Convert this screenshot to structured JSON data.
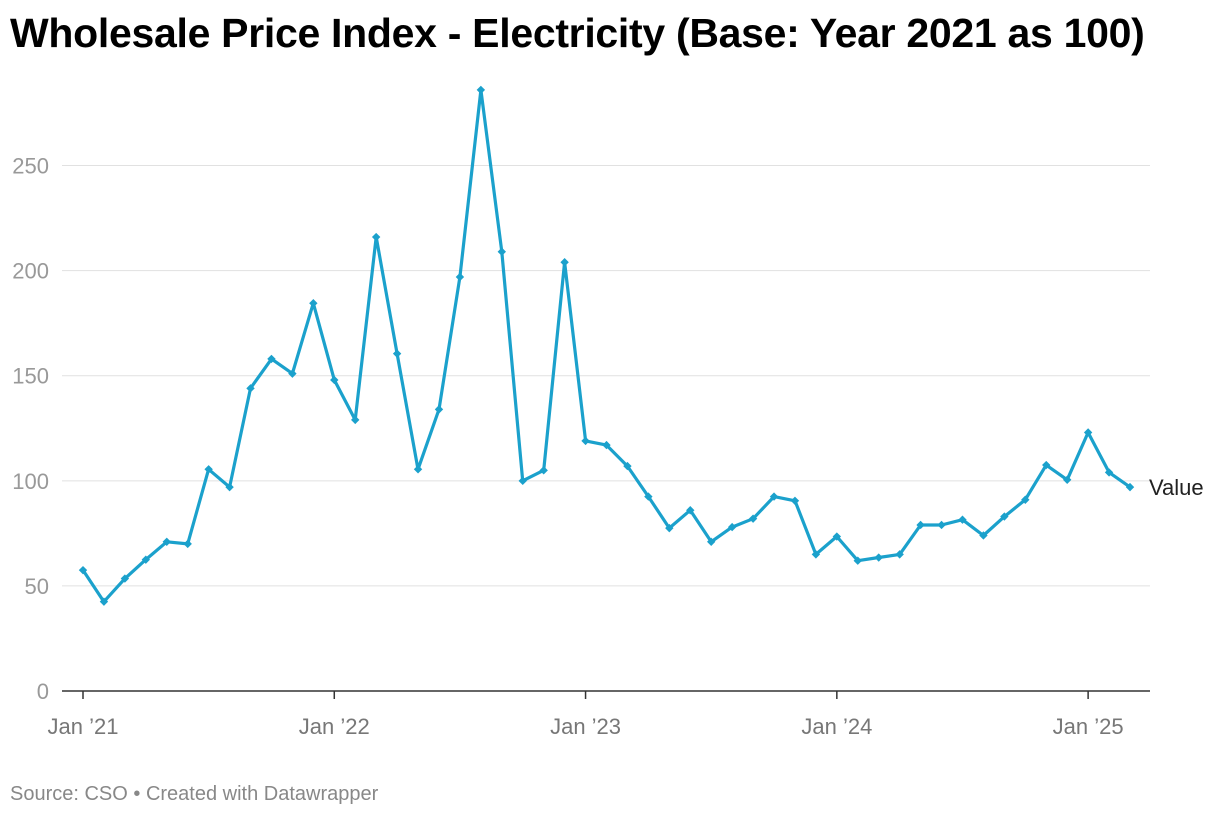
{
  "colors": {
    "line": "#1ba1cc",
    "grid": "#e1e1e1",
    "axis": "#333333"
  },
  "chart_data": {
    "type": "line",
    "title": "Wholesale Price Index - Electricity (Base: Year 2021 as 100)",
    "xlabel": "",
    "ylabel": "",
    "ylim": [
      0,
      285
    ],
    "yticks": [
      0,
      50,
      100,
      150,
      200,
      250
    ],
    "xticks": [
      {
        "label": "Jan ’21",
        "x": "2021-01"
      },
      {
        "label": "Jan ’22",
        "x": "2022-01"
      },
      {
        "label": "Jan ’23",
        "x": "2023-01"
      },
      {
        "label": "Jan ’24",
        "x": "2024-01"
      },
      {
        "label": "Jan ’25",
        "x": "2025-01"
      }
    ],
    "grid": true,
    "series": [
      {
        "name": "Value",
        "x": [
          "2021-01",
          "2021-02",
          "2021-03",
          "2021-04",
          "2021-05",
          "2021-06",
          "2021-07",
          "2021-08",
          "2021-09",
          "2021-10",
          "2021-11",
          "2021-12",
          "2022-01",
          "2022-02",
          "2022-03",
          "2022-04",
          "2022-05",
          "2022-06",
          "2022-07",
          "2022-08",
          "2022-09",
          "2022-10",
          "2022-11",
          "2022-12",
          "2023-01",
          "2023-02",
          "2023-03",
          "2023-04",
          "2023-05",
          "2023-06",
          "2023-07",
          "2023-08",
          "2023-09",
          "2023-10",
          "2023-11",
          "2023-12",
          "2024-01",
          "2024-02",
          "2024-03",
          "2024-04",
          "2024-05",
          "2024-06",
          "2024-07",
          "2024-08",
          "2024-09",
          "2024-10",
          "2024-11",
          "2024-12",
          "2025-01",
          "2025-02",
          "2025-03"
        ],
        "values": [
          57.5,
          42.5,
          53.5,
          62.5,
          71,
          70,
          105.5,
          97,
          144,
          158,
          151,
          184.5,
          148,
          129,
          216,
          160.5,
          105.5,
          134,
          197,
          286,
          209,
          100,
          105,
          204,
          119,
          117,
          107,
          92.5,
          77.5,
          86,
          71,
          78,
          82,
          92.5,
          90.5,
          65,
          73.5,
          62,
          63.5,
          65,
          79,
          79,
          81.5,
          74,
          83,
          91,
          107.5,
          100.5,
          123,
          104,
          97
        ]
      }
    ]
  },
  "footer": {
    "text": "Source: CSO • Created with Datawrapper"
  }
}
